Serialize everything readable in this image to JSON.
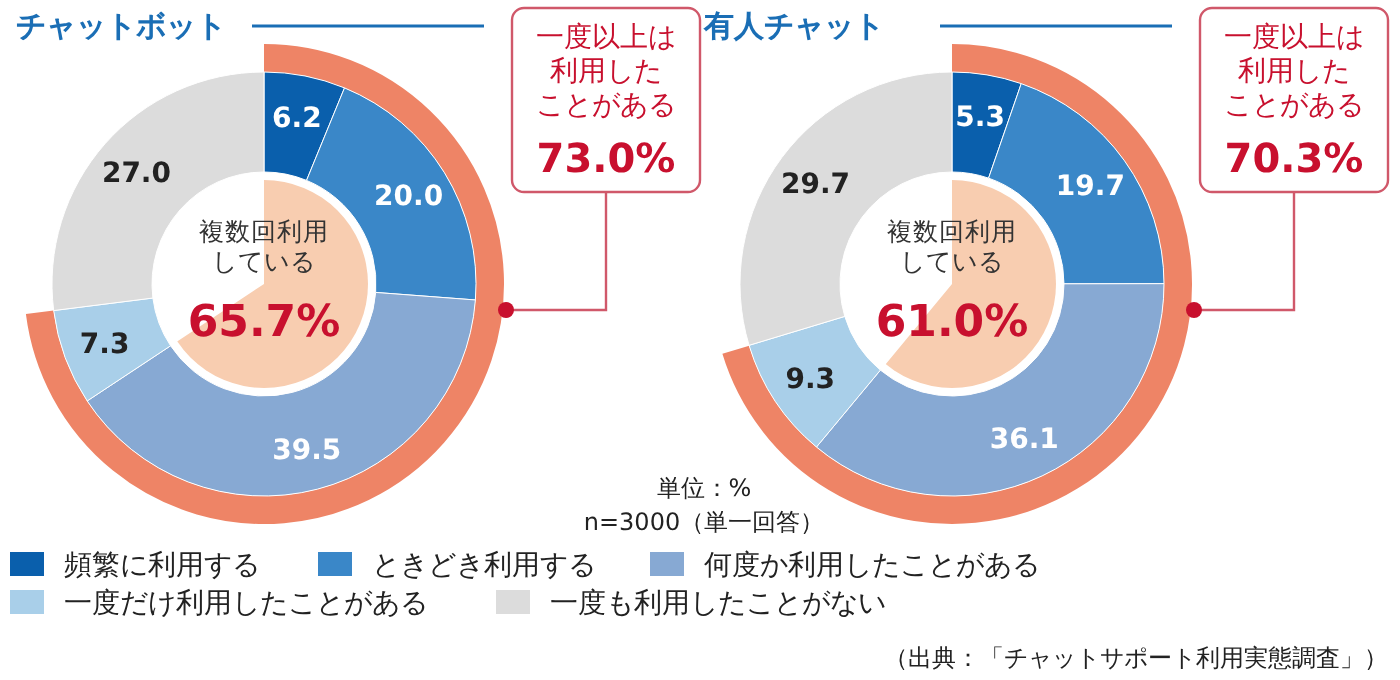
{
  "chart_data": [
    {
      "type": "donut",
      "title": "チャットボット",
      "categories": [
        "頻繁に利用する",
        "ときどき利用する",
        "何度か利用したことがある",
        "一度だけ利用したことがある",
        "一度も利用したことがない"
      ],
      "legend": "bottom",
      "series": [
        {
          "values": [
            6.2,
            20.0,
            39.5,
            7.3,
            27.0
          ],
          "colors": [
            "#0a5fac",
            "#3a87c8",
            "#87a9d3",
            "#a9cfe9",
            "#dcdcdc"
          ],
          "value_labels": [
            "6.2",
            "20.0",
            "39.5",
            "7.3",
            "27.0"
          ]
        }
      ],
      "annotations": [
        "一度以上は利用したことがある",
        "73.0%",
        "複数回利用している",
        "65.7%",
        "単位：%",
        "n=3000（単一回答）"
      ]
    },
    {
      "type": "donut",
      "title": "有人チャット",
      "categories": [
        null,
        null,
        null,
        null,
        null
      ],
      "series": [
        {
          "values": [
            5.3,
            19.7,
            36.1,
            9.3,
            29.7
          ],
          "colors": [
            "#0a5fac",
            "#3a87c8",
            "#87a9d3",
            "#a9cfe9",
            "#dcdcdc"
          ],
          "value_labels": [
            "5.3",
            "19.7",
            "36.1",
            "9.3",
            "29.7"
          ]
        }
      ],
      "annotations": [
        "一度以上は利用したことがある",
        "70.3%",
        "複数回利用している",
        "61.0%",
        "（出典：「チャットサポート利用実態調査」）"
      ]
    }
  ]
}
